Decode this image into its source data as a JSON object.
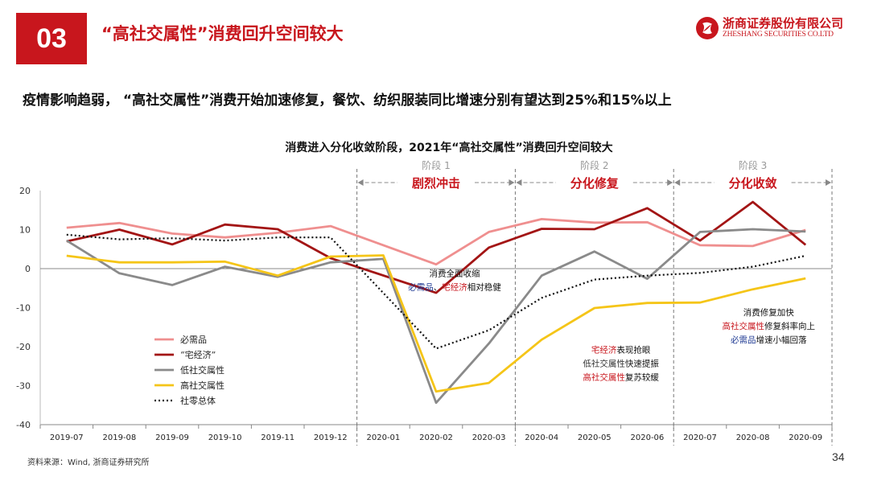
{
  "header": {
    "section_number": "03",
    "title": "“高社交属性”消费回升空间较大",
    "logo_cn": "浙商证券股份有限公司",
    "logo_en": "ZHESHANG SECURITIES CO.LTD"
  },
  "subtitle": "疫情影响趋弱，  “高社交属性”消费开始加速修复，餐饮、纺织服装同比增速分别有望达到25%和15%以上",
  "footer": {
    "source": "资料来源：Wind, 浙商证券研究所",
    "page_number": "34"
  },
  "colors": {
    "brand_red": "#c8161d"
  },
  "chart_data": {
    "type": "line",
    "title": "消费进入分化收敛阶段，2021年“高社交属性”消费回升空间较大",
    "categories": [
      "2019-07",
      "2019-08",
      "2019-09",
      "2019-10",
      "2019-11",
      "2019-12",
      "2020-01",
      "2020-02",
      "2020-03",
      "2020-04",
      "2020-05",
      "2020-06",
      "2020-07",
      "2020-08",
      "2020-09"
    ],
    "ylim": [
      -40,
      20
    ],
    "yticks": [
      20,
      10,
      0,
      -10,
      -20,
      -30,
      -40
    ],
    "series": [
      {
        "name": "必需品",
        "color": "#ef8f8f",
        "dash": "",
        "values": [
          10.5,
          11.7,
          9.0,
          8.0,
          9.2,
          10.9,
          null,
          1.1,
          9.4,
          12.7,
          11.8,
          11.9,
          6.0,
          5.8,
          9.9
        ]
      },
      {
        "name": "“宅经济”",
        "color": "#a31515",
        "dash": "",
        "values": [
          7.0,
          10.0,
          6.2,
          11.3,
          10.1,
          2.7,
          null,
          -6.2,
          5.4,
          10.2,
          10.1,
          15.5,
          7.2,
          17.1,
          6.1
        ]
      },
      {
        "name": "低社交属性",
        "color": "#8a8a8a",
        "dash": "",
        "values": [
          7.2,
          -1.2,
          -4.2,
          0.5,
          -2.1,
          1.6,
          2.5,
          -34.4,
          -19.2,
          -1.8,
          4.4,
          -2.6,
          9.4,
          10.1,
          9.5
        ]
      },
      {
        "name": "高社交属性",
        "color": "#f5c518",
        "dash": "",
        "values": [
          3.3,
          1.6,
          1.6,
          1.8,
          -1.8,
          3.1,
          3.4,
          -31.5,
          -29.3,
          -18.2,
          -10.1,
          -8.8,
          -8.7,
          -5.3,
          -2.5
        ]
      },
      {
        "name": "社零总体",
        "color": "#111111",
        "dash": "2,3",
        "values": [
          8.7,
          7.5,
          7.8,
          7.2,
          8.0,
          8.0,
          null,
          -20.5,
          -15.8,
          -7.5,
          -2.8,
          -1.8,
          -1.1,
          0.5,
          3.3
        ]
      }
    ],
    "phases": [
      {
        "label": "阶段 1",
        "name": "剧烈冲击",
        "start": 5.5,
        "end": 8.5
      },
      {
        "label": "阶段 2",
        "name": "分化修复",
        "start": 8.5,
        "end": 11.5
      },
      {
        "label": "阶段 3",
        "name": "分化收敛",
        "start": 11.5,
        "end": 14.5
      }
    ],
    "annotations": [
      {
        "at": 7.35,
        "y": -2,
        "lines": [
          [
            {
              "t": "消费全面收缩",
              "c": "#111"
            }
          ],
          [
            {
              "t": "必需品",
              "c": "#1f3a93"
            },
            {
              "t": "、",
              "c": "#111"
            },
            {
              "t": "宅经济",
              "c": "#c8161d"
            },
            {
              "t": "相对稳健",
              "c": "#111"
            }
          ]
        ]
      },
      {
        "at": 10.5,
        "y": -21.5,
        "lines": [
          [
            {
              "t": "宅经济",
              "c": "#c8161d"
            },
            {
              "t": "表现抢眼",
              "c": "#111"
            }
          ],
          [
            {
              "t": "低社交属性",
              "c": "#333"
            },
            {
              "t": "快速提振",
              "c": "#111"
            }
          ],
          [
            {
              "t": "高社交属性",
              "c": "#c8161d"
            },
            {
              "t": "复苏较缓",
              "c": "#111"
            }
          ]
        ]
      },
      {
        "at": 13.3,
        "y": -12,
        "lines": [
          [
            {
              "t": "消费修复加快",
              "c": "#111"
            }
          ],
          [
            {
              "t": "高社交属性",
              "c": "#c8161d"
            },
            {
              "t": "修复斜率向上",
              "c": "#111"
            }
          ],
          [
            {
              "t": "必需品",
              "c": "#1f3a93"
            },
            {
              "t": "增速小幅回落",
              "c": "#111"
            }
          ]
        ]
      }
    ],
    "legend_position": "bottom-left"
  }
}
